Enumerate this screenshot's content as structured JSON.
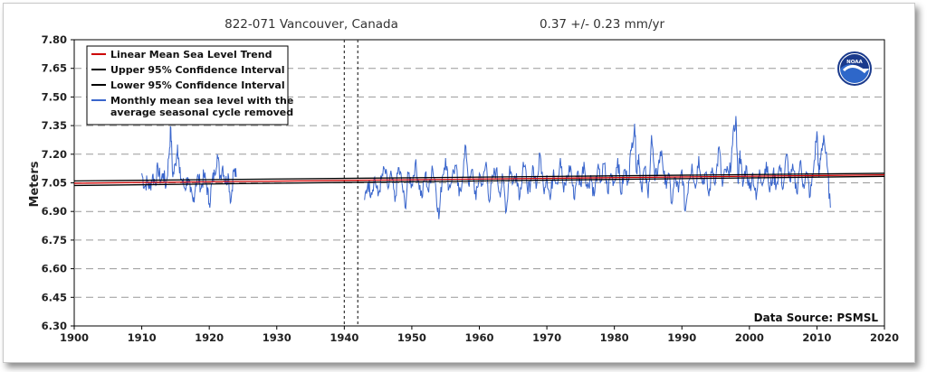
{
  "chart_data": {
    "type": "line",
    "title": "822-071 Vancouver, Canada",
    "trend_label": "0.37 +/-  0.23 mm/yr",
    "ylabel": "Meters",
    "xlabel": "",
    "xlim": [
      1900,
      2020
    ],
    "ylim": [
      6.3,
      7.8
    ],
    "x_ticks": [
      "1900",
      "1910",
      "1920",
      "1930",
      "1940",
      "1950",
      "1960",
      "1970",
      "1980",
      "1990",
      "2000",
      "2010",
      "2020"
    ],
    "y_ticks": [
      "7.80",
      "7.65",
      "7.50",
      "7.35",
      "7.20",
      "7.05",
      "6.90",
      "6.75",
      "6.60",
      "6.45",
      "6.30"
    ],
    "grid": "horizontal dashed",
    "legend_position": "top-left",
    "source": "Data Source: PSMSL",
    "gap_markers": [
      1940,
      1942
    ],
    "series": [
      {
        "name": "Linear Mean Sea Level Trend",
        "color": "#cc0000",
        "type": "line",
        "x": [
          1900,
          2020
        ],
        "y": [
          7.048,
          7.092
        ]
      },
      {
        "name": "Upper 95% Confidence Interval",
        "color": "#000000",
        "type": "line",
        "x": [
          1900,
          2020
        ],
        "y": [
          7.06,
          7.1
        ]
      },
      {
        "name": "Lower 95% Confidence Interval",
        "color": "#000000",
        "type": "line",
        "x": [
          1900,
          2020
        ],
        "y": [
          7.036,
          7.084
        ]
      },
      {
        "name": "Monthly mean sea level with the\n average seasonal cycle removed",
        "color": "#3a66cc",
        "type": "line",
        "segments": [
          {
            "start": 1910.0,
            "end": 1924.0,
            "points": [
              [
                1910.0,
                7.1
              ],
              [
                1910.4,
                7.03
              ],
              [
                1910.8,
                7.06
              ],
              [
                1911.2,
                7.02
              ],
              [
                1911.6,
                7.09
              ],
              [
                1912.0,
                7.05
              ],
              [
                1912.4,
                7.13
              ],
              [
                1912.8,
                7.06
              ],
              [
                1913.2,
                7.1
              ],
              [
                1913.6,
                7.03
              ],
              [
                1914.0,
                7.18
              ],
              [
                1914.3,
                7.34
              ],
              [
                1914.6,
                7.08
              ],
              [
                1915.0,
                7.15
              ],
              [
                1915.3,
                7.25
              ],
              [
                1915.6,
                7.1
              ],
              [
                1916.0,
                7.06
              ],
              [
                1916.4,
                7.02
              ],
              [
                1916.8,
                7.08
              ],
              [
                1917.2,
                7.0
              ],
              [
                1917.6,
                6.95
              ],
              [
                1918.0,
                7.05
              ],
              [
                1918.4,
                7.08
              ],
              [
                1918.8,
                7.02
              ],
              [
                1919.2,
                7.09
              ],
              [
                1919.6,
                7.04
              ],
              [
                1920.0,
                6.94
              ],
              [
                1920.4,
                7.05
              ],
              [
                1920.8,
                7.1
              ],
              [
                1921.2,
                7.2
              ],
              [
                1921.6,
                7.08
              ],
              [
                1922.0,
                7.14
              ],
              [
                1922.4,
                7.05
              ],
              [
                1922.8,
                7.1
              ],
              [
                1923.2,
                6.95
              ],
              [
                1923.6,
                7.12
              ],
              [
                1924.0,
                7.08
              ]
            ]
          },
          {
            "start": 1943.0,
            "end": 2012.0,
            "points": [
              [
                1943.0,
                6.96
              ],
              [
                1943.5,
                7.05
              ],
              [
                1944.0,
                7.0
              ],
              [
                1944.5,
                7.08
              ],
              [
                1945.0,
                6.98
              ],
              [
                1945.5,
                7.07
              ],
              [
                1946.0,
                7.12
              ],
              [
                1946.5,
                7.02
              ],
              [
                1947.0,
                7.09
              ],
              [
                1947.5,
                6.95
              ],
              [
                1948.0,
                7.13
              ],
              [
                1948.5,
                7.06
              ],
              [
                1949.0,
                6.92
              ],
              [
                1949.5,
                7.1
              ],
              [
                1950.0,
                7.04
              ],
              [
                1950.5,
                7.15
              ],
              [
                1951.0,
                7.06
              ],
              [
                1951.5,
                6.97
              ],
              [
                1952.0,
                7.1
              ],
              [
                1952.5,
                7.0
              ],
              [
                1953.0,
                7.14
              ],
              [
                1953.5,
                7.05
              ],
              [
                1954.0,
                6.86
              ],
              [
                1954.5,
                7.08
              ],
              [
                1955.0,
                7.18
              ],
              [
                1955.5,
                7.02
              ],
              [
                1956.0,
                7.09
              ],
              [
                1956.5,
                7.14
              ],
              [
                1957.0,
                6.98
              ],
              [
                1957.5,
                7.08
              ],
              [
                1958.0,
                7.24
              ],
              [
                1958.5,
                7.03
              ],
              [
                1959.0,
                7.12
              ],
              [
                1959.5,
                6.96
              ],
              [
                1960.0,
                7.1
              ],
              [
                1960.5,
                7.04
              ],
              [
                1961.0,
                7.16
              ],
              [
                1961.5,
                6.95
              ],
              [
                1962.0,
                7.08
              ],
              [
                1962.5,
                7.12
              ],
              [
                1963.0,
                7.0
              ],
              [
                1963.5,
                7.07
              ],
              [
                1964.0,
                6.9
              ],
              [
                1964.5,
                7.14
              ],
              [
                1965.0,
                7.05
              ],
              [
                1965.5,
                7.1
              ],
              [
                1966.0,
                6.98
              ],
              [
                1966.5,
                7.16
              ],
              [
                1967.0,
                7.06
              ],
              [
                1967.5,
                7.0
              ],
              [
                1968.0,
                7.13
              ],
              [
                1968.5,
                7.04
              ],
              [
                1969.0,
                7.2
              ],
              [
                1969.5,
                7.02
              ],
              [
                1970.0,
                7.09
              ],
              [
                1970.5,
                6.96
              ],
              [
                1971.0,
                7.12
              ],
              [
                1971.5,
                7.05
              ],
              [
                1972.0,
                7.18
              ],
              [
                1972.5,
                7.0
              ],
              [
                1973.0,
                7.08
              ],
              [
                1973.5,
                7.14
              ],
              [
                1974.0,
                6.97
              ],
              [
                1974.5,
                7.1
              ],
              [
                1975.0,
                7.04
              ],
              [
                1975.5,
                7.16
              ],
              [
                1976.0,
                7.02
              ],
              [
                1976.5,
                7.09
              ],
              [
                1977.0,
                6.98
              ],
              [
                1977.5,
                7.12
              ],
              [
                1978.0,
                7.06
              ],
              [
                1978.5,
                7.15
              ],
              [
                1979.0,
                7.0
              ],
              [
                1979.5,
                7.1
              ],
              [
                1980.0,
                7.05
              ],
              [
                1980.5,
                7.18
              ],
              [
                1981.0,
                6.99
              ],
              [
                1981.5,
                7.12
              ],
              [
                1982.0,
                7.06
              ],
              [
                1982.5,
                7.22
              ],
              [
                1983.0,
                7.36
              ],
              [
                1983.3,
                7.1
              ],
              [
                1983.6,
                7.2
              ],
              [
                1984.0,
                7.02
              ],
              [
                1984.5,
                7.13
              ],
              [
                1985.0,
                6.97
              ],
              [
                1985.5,
                7.3
              ],
              [
                1986.0,
                7.06
              ],
              [
                1986.5,
                7.14
              ],
              [
                1987.0,
                7.22
              ],
              [
                1987.5,
                7.04
              ],
              [
                1988.0,
                7.1
              ],
              [
                1988.5,
                6.94
              ],
              [
                1989.0,
                7.08
              ],
              [
                1989.5,
                7.0
              ],
              [
                1990.0,
                7.12
              ],
              [
                1990.5,
                6.9
              ],
              [
                1991.0,
                7.06
              ],
              [
                1991.5,
                7.15
              ],
              [
                1992.0,
                7.02
              ],
              [
                1992.5,
                7.19
              ],
              [
                1993.0,
                7.05
              ],
              [
                1993.5,
                7.1
              ],
              [
                1994.0,
                6.98
              ],
              [
                1994.5,
                7.13
              ],
              [
                1995.0,
                7.06
              ],
              [
                1995.5,
                7.24
              ],
              [
                1996.0,
                7.03
              ],
              [
                1996.5,
                7.12
              ],
              [
                1997.0,
                7.08
              ],
              [
                1997.5,
                7.25
              ],
              [
                1998.0,
                7.4
              ],
              [
                1998.3,
                7.05
              ],
              [
                1998.6,
                7.22
              ],
              [
                1999.0,
                7.03
              ],
              [
                1999.5,
                7.14
              ],
              [
                2000.0,
                7.02
              ],
              [
                2000.5,
                7.1
              ],
              [
                2001.0,
                6.96
              ],
              [
                2001.5,
                7.12
              ],
              [
                2002.0,
                7.05
              ],
              [
                2002.5,
                7.16
              ],
              [
                2003.0,
                7.0
              ],
              [
                2003.5,
                7.1
              ],
              [
                2004.0,
                7.04
              ],
              [
                2004.5,
                7.14
              ],
              [
                2005.0,
                7.02
              ],
              [
                2005.5,
                7.2
              ],
              [
                2006.0,
                7.06
              ],
              [
                2006.5,
                7.12
              ],
              [
                2007.0,
                7.0
              ],
              [
                2007.5,
                7.16
              ],
              [
                2008.0,
                7.04
              ],
              [
                2008.5,
                7.1
              ],
              [
                2009.0,
                6.98
              ],
              [
                2009.5,
                7.12
              ],
              [
                2010.0,
                7.32
              ],
              [
                2010.3,
                7.08
              ],
              [
                2010.6,
                7.2
              ],
              [
                2011.0,
                7.3
              ],
              [
                2011.5,
                7.14
              ],
              [
                2012.0,
                6.92
              ]
            ]
          }
        ]
      }
    ]
  }
}
